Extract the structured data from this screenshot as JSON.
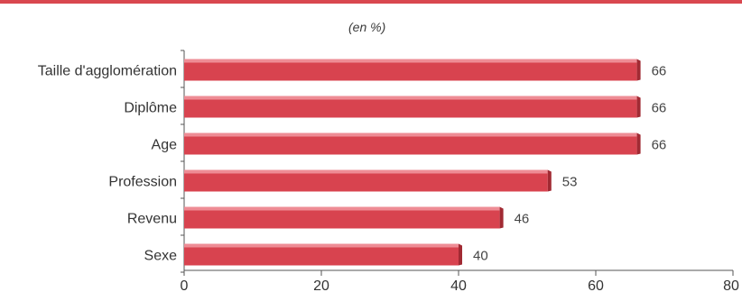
{
  "chart_data": {
    "type": "bar",
    "orientation": "horizontal",
    "unit_note": "(en %)",
    "categories": [
      "Taille d'agglomération",
      "Diplôme",
      "Age",
      "Profession",
      "Revenu",
      "Sexe"
    ],
    "values": [
      66,
      66,
      66,
      53,
      46,
      40
    ],
    "xlim": [
      0,
      80
    ],
    "xticks": [
      0,
      20,
      40,
      60,
      80
    ],
    "grid": false,
    "colors": {
      "bar": "#d8434f",
      "bar_top": "#ee8c95",
      "bar_side": "#a12a33",
      "accent": "#d9474f"
    }
  }
}
